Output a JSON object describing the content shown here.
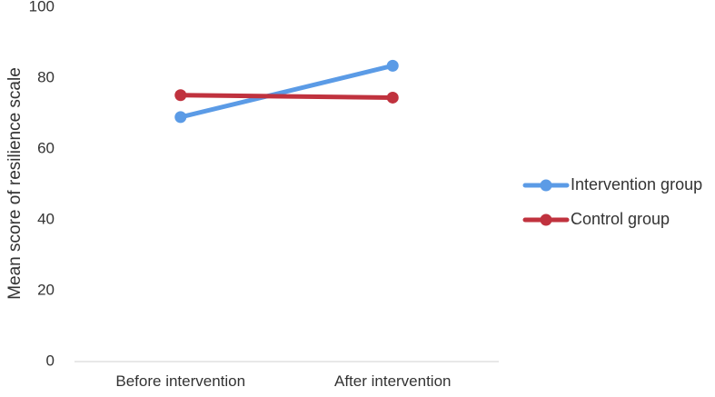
{
  "chart_data": {
    "type": "line",
    "title": "",
    "xlabel": "",
    "ylabel": "Mean score of resilience scale",
    "categories": [
      "Before intervention",
      "After intervention"
    ],
    "ylim": [
      0,
      100
    ],
    "yticks": [
      0,
      20,
      40,
      60,
      80,
      100
    ],
    "grid": false,
    "legend_position": "right",
    "series": [
      {
        "name": "Intervention group",
        "values": [
          69.0,
          83.5
        ],
        "color": "#5B9BE6"
      },
      {
        "name": "Control group",
        "values": [
          75.2,
          74.5
        ],
        "color": "#C0323E"
      }
    ]
  }
}
